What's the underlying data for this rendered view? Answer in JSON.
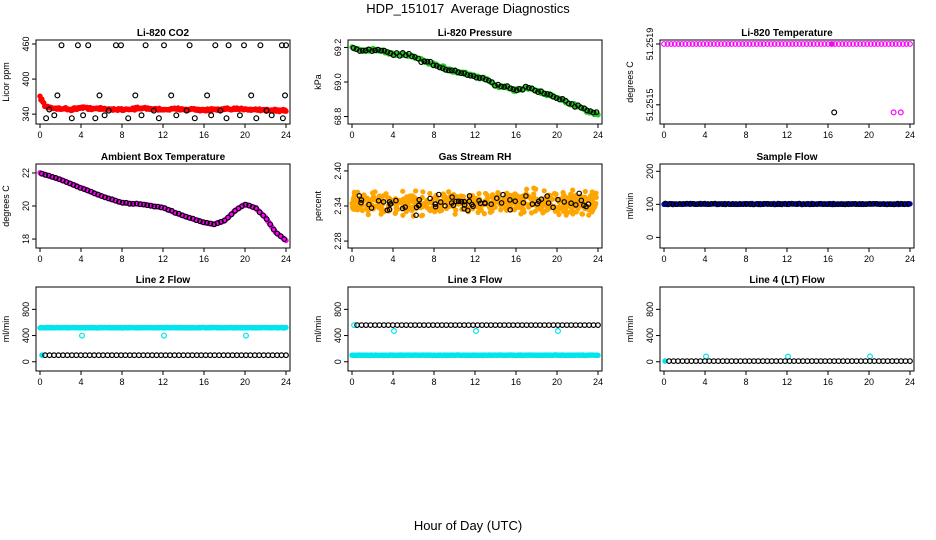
{
  "page": {
    "title": "HDP_151017  Average Diagnostics",
    "xlabel": "Hour of Day (UTC)"
  },
  "colors": {
    "axis": "#000000",
    "black_points": "#000000",
    "red": "#ff0000",
    "green": "#22cc22",
    "magenta": "#ff00ff",
    "orange": "#ffa500",
    "blue": "#0000cc",
    "cyan": "#00e5ee"
  },
  "chart_data": [
    {
      "type": "scatter",
      "title": "Li-820 CO2",
      "ylabel": "Licor ppm",
      "xlim": [
        0,
        24
      ],
      "ylim": [
        330,
        460
      ],
      "xticks": [
        "0",
        "4",
        "8",
        "12",
        "16",
        "20",
        "24"
      ],
      "yticks": [
        "340",
        "400",
        "460"
      ],
      "series": [
        {
          "color": "red",
          "kind": "dense",
          "shape": "smooth",
          "pts": [
            [
              0,
              370
            ],
            [
              0.5,
              354
            ],
            [
              1,
              350
            ],
            [
              2,
              350
            ],
            [
              3,
              348
            ],
            [
              4,
              351
            ],
            [
              6,
              349
            ],
            [
              8,
              348
            ],
            [
              10,
              350
            ],
            [
              12,
              348
            ],
            [
              14,
              349
            ],
            [
              16,
              347
            ],
            [
              18,
              348
            ],
            [
              20,
              349
            ],
            [
              22,
              347
            ],
            [
              24,
              346
            ]
          ],
          "jitter": 3
        },
        {
          "color": "black_points",
          "kind": "open",
          "x": [
            2.1,
            3.7,
            4.7,
            7.4,
            7.9,
            10.3,
            12.1,
            14.6,
            17.1,
            18.4,
            19.9,
            21.5,
            23.6,
            24.0,
            0.6,
            1.4,
            3.1,
            4.2,
            5.4,
            6.3,
            8.6,
            9.9,
            11.6,
            13.3,
            15.1,
            16.7,
            18.2,
            19.5,
            21.1,
            22.6,
            23.7,
            1.7,
            5.8,
            9.3,
            12.8,
            16.3,
            20.6,
            23.9,
            0.9,
            6.7,
            11.1,
            14.3,
            17.6,
            22.1
          ],
          "y": [
            458,
            458,
            458,
            458,
            458,
            458,
            458,
            458,
            458,
            458,
            458,
            458,
            458,
            458,
            333,
            338,
            333,
            338,
            333,
            338,
            333,
            338,
            333,
            338,
            333,
            338,
            333,
            338,
            333,
            338,
            333,
            372,
            372,
            372,
            372,
            372,
            372,
            372,
            348,
            346,
            346,
            346,
            346,
            346
          ]
        }
      ]
    },
    {
      "type": "scatter",
      "title": "Li-820 Pressure",
      "ylabel": "kPa",
      "xlim": [
        0,
        24
      ],
      "ylim": [
        68.78,
        69.22
      ],
      "xticks": [
        "0",
        "4",
        "8",
        "12",
        "16",
        "20",
        "24"
      ],
      "yticks": [
        "68.8",
        "69.0",
        "69.2"
      ],
      "series": [
        {
          "color": "green",
          "kind": "dense",
          "shape": "smooth",
          "pts": [
            [
              0,
              69.2
            ],
            [
              1,
              69.18
            ],
            [
              2,
              69.19
            ],
            [
              3,
              69.18
            ],
            [
              4,
              69.16
            ],
            [
              5,
              69.16
            ],
            [
              6,
              69.15
            ],
            [
              7,
              69.12
            ],
            [
              8,
              69.1
            ],
            [
              9,
              69.08
            ],
            [
              10,
              69.06
            ],
            [
              11,
              69.05
            ],
            [
              12,
              69.03
            ],
            [
              13,
              69.02
            ],
            [
              14,
              68.98
            ],
            [
              15,
              68.97
            ],
            [
              16,
              68.95
            ],
            [
              17,
              68.97
            ],
            [
              18,
              68.95
            ],
            [
              19,
              68.93
            ],
            [
              20,
              68.91
            ],
            [
              21,
              68.88
            ],
            [
              22,
              68.86
            ],
            [
              23,
              68.83
            ],
            [
              24,
              68.81
            ]
          ],
          "jitter": 0.012
        },
        {
          "color": "black_points",
          "kind": "open",
          "shape": "follow",
          "n": 80,
          "jitter": 0.015
        }
      ]
    },
    {
      "type": "scatter",
      "title": "Li-820 Temperature",
      "ylabel": "degrees C",
      "xlim": [
        0,
        24
      ],
      "ylim": [
        51.2514,
        51.2519
      ],
      "xticks": [
        "0",
        "4",
        "8",
        "12",
        "16",
        "20",
        "24"
      ],
      "yticks": [
        "51.2515",
        "51.2519"
      ],
      "ytick_vals": [
        51.2515,
        51.2519
      ],
      "yticks_extra": [
        "51.2515",
        "51.2519"
      ],
      "series": [
        {
          "color": "magenta",
          "kind": "open",
          "x_range": [
            0,
            24
          ],
          "y_const": 51.2519,
          "n": 70
        },
        {
          "color": "magenta",
          "kind": "open",
          "x": [
            22.4,
            23.1
          ],
          "y": [
            51.25145,
            51.25145
          ]
        },
        {
          "color": "black_points",
          "kind": "open",
          "x": [
            16.6
          ],
          "y": [
            51.25145
          ]
        },
        {
          "color": "magenta",
          "kind": "filled",
          "x": [
            16.4
          ],
          "y": [
            51.2519
          ]
        }
      ]
    },
    {
      "type": "scatter",
      "title": "Ambient Box Temperature",
      "ylabel": "degrees C",
      "xlim": [
        0,
        24
      ],
      "ylim": [
        17.7,
        22.3
      ],
      "xticks": [
        "0",
        "4",
        "8",
        "12",
        "16",
        "20",
        "24"
      ],
      "yticks": [
        "18",
        "20",
        "22"
      ],
      "series": [
        {
          "color": "magenta",
          "kind": "dense",
          "shape": "smooth",
          "pts": [
            [
              0,
              22
            ],
            [
              2,
              21.6
            ],
            [
              4,
              21.1
            ],
            [
              6,
              20.6
            ],
            [
              8,
              20.2
            ],
            [
              10,
              20.1
            ],
            [
              12,
              19.9
            ],
            [
              14,
              19.4
            ],
            [
              16,
              19.0
            ],
            [
              17,
              18.9
            ],
            [
              18,
              19.1
            ],
            [
              19,
              19.7
            ],
            [
              20,
              20.1
            ],
            [
              21,
              19.9
            ],
            [
              22,
              19.3
            ],
            [
              23,
              18.4
            ],
            [
              24,
              17.9
            ]
          ],
          "jitter": 0.03
        },
        {
          "color": "black_points",
          "kind": "open",
          "shape": "follow",
          "n": 70,
          "jitter": 0.04
        }
      ]
    },
    {
      "type": "scatter",
      "title": "Gas Stream RH",
      "ylabel": "percent",
      "xlim": [
        0,
        24
      ],
      "ylim": [
        2.275,
        2.405
      ],
      "xticks": [
        "0",
        "4",
        "8",
        "12",
        "16",
        "20",
        "24"
      ],
      "yticks": [
        "2.28",
        "2.34",
        "2.40"
      ],
      "ytick_vals": [
        2.28,
        2.34,
        2.4
      ],
      "yticks_extra": [
        "2.28",
        "2.34",
        "2.40"
      ],
      "series": [
        {
          "color": "orange",
          "kind": "scatter_band",
          "center": 2.345,
          "spread": 0.028,
          "n": 520
        },
        {
          "color": "black_points",
          "kind": "scatter_band",
          "center": 2.345,
          "spread": 0.022,
          "n": 70,
          "open": true
        }
      ]
    },
    {
      "type": "scatter",
      "title": "Sample Flow",
      "ylabel": "ml/min",
      "xlim": [
        0,
        24
      ],
      "ylim": [
        -20,
        210
      ],
      "xticks": [
        "0",
        "4",
        "8",
        "12",
        "16",
        "20",
        "24"
      ],
      "yticks": [
        "0",
        "100",
        "200"
      ],
      "series": [
        {
          "color": "blue",
          "kind": "dense",
          "shape": "smooth",
          "pts": [
            [
              0,
              101
            ],
            [
              24,
              101
            ]
          ],
          "jitter": 2
        },
        {
          "color": "black_points",
          "kind": "open",
          "shape": "follow",
          "n": 70,
          "jitter": 1.5
        }
      ]
    },
    {
      "type": "scatter",
      "title": "Line 2 Flow",
      "ylabel": "ml/min",
      "xlim": [
        0,
        24
      ],
      "ylim": [
        -80,
        1080
      ],
      "xticks": [
        "0",
        "4",
        "8",
        "12",
        "16",
        "20",
        "24"
      ],
      "yticks": [
        "0",
        "400",
        "800"
      ],
      "series": [
        {
          "color": "cyan",
          "kind": "dense",
          "shape": "smooth",
          "pts": [
            [
              0,
              520
            ],
            [
              24,
              520
            ]
          ],
          "jitter": 6
        },
        {
          "color": "cyan",
          "kind": "open",
          "x": [
            4.1,
            12.1,
            20.1
          ],
          "y": [
            400,
            400,
            400
          ]
        },
        {
          "color": "cyan",
          "kind": "filled",
          "x": [
            0.2
          ],
          "y": [
            100
          ]
        },
        {
          "color": "black_points",
          "kind": "open",
          "x_range": [
            0.5,
            24
          ],
          "y_const": 100,
          "n": 55
        }
      ]
    },
    {
      "type": "scatter",
      "title": "Line 3 Flow",
      "ylabel": "ml/min",
      "xlim": [
        0,
        24
      ],
      "ylim": [
        -80,
        1080
      ],
      "xticks": [
        "0",
        "4",
        "8",
        "12",
        "16",
        "20",
        "24"
      ],
      "yticks": [
        "0",
        "400",
        "800"
      ],
      "series": [
        {
          "color": "cyan",
          "kind": "dense",
          "shape": "smooth",
          "pts": [
            [
              0,
              100
            ],
            [
              24,
              100
            ]
          ],
          "jitter": 5
        },
        {
          "color": "cyan",
          "kind": "open",
          "x": [
            4.1,
            12.1,
            20.1,
            0.2
          ],
          "y": [
            470,
            470,
            470,
            560
          ]
        },
        {
          "color": "black_points",
          "kind": "open",
          "x_range": [
            0.5,
            24
          ],
          "y_const": 560,
          "n": 55
        }
      ]
    },
    {
      "type": "scatter",
      "title": "Line 4 (LT) Flow",
      "ylabel": "ml/min",
      "xlim": [
        0,
        24
      ],
      "ylim": [
        -80,
        1080
      ],
      "xticks": [
        "0",
        "4",
        "8",
        "12",
        "16",
        "20",
        "24"
      ],
      "yticks": [
        "0",
        "400",
        "800"
      ],
      "series": [
        {
          "color": "cyan",
          "kind": "open",
          "x": [
            4.1,
            12.1,
            20.1
          ],
          "y": [
            80,
            80,
            80
          ]
        },
        {
          "color": "cyan",
          "kind": "filled",
          "x": [
            0.1
          ],
          "y": [
            10
          ]
        },
        {
          "color": "black_points",
          "kind": "open",
          "x_range": [
            0.5,
            24
          ],
          "y_const": 10,
          "n": 55
        }
      ]
    }
  ]
}
